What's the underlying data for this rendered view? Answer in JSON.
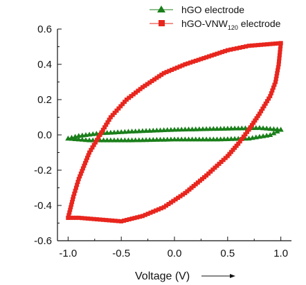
{
  "chart_data": {
    "type": "scatter",
    "title": "",
    "xlabel": "Voltage (V)",
    "ylabel": "",
    "xlim": [
      -1.1,
      1.1
    ],
    "ylim": [
      -0.6,
      0.6
    ],
    "xticks": [
      -1.0,
      -0.5,
      0.0,
      0.5,
      1.0
    ],
    "xtick_labels": [
      "-1.0",
      "-0.5",
      "0.0",
      "0.5",
      "1.0"
    ],
    "yticks": [
      -0.6,
      -0.4,
      -0.2,
      0.0,
      0.2,
      0.4,
      0.6
    ],
    "ytick_labels": [
      "-0.6",
      "-0.4",
      "-0.2",
      "0.0",
      "0.2",
      "0.4",
      "0.6"
    ],
    "grid": false,
    "legend_position": "top-right",
    "series": [
      {
        "name": "hGO electrode",
        "name_main": "hGO electrode",
        "name_sub": "",
        "name_tail": "",
        "marker": "triangle",
        "color": "#1a7f1a",
        "forward": [
          [
            -1.0,
            -0.02
          ],
          [
            -0.9,
            -0.005
          ],
          [
            -0.7,
            0.01
          ],
          [
            -0.4,
            0.02
          ],
          [
            0.0,
            0.03
          ],
          [
            0.4,
            0.035
          ],
          [
            0.8,
            0.04
          ],
          [
            1.0,
            0.03
          ]
        ],
        "reverse": [
          [
            1.0,
            0.03
          ],
          [
            0.9,
            0.0
          ],
          [
            0.7,
            -0.02
          ],
          [
            0.4,
            -0.025
          ],
          [
            0.0,
            -0.025
          ],
          [
            -0.4,
            -0.03
          ],
          [
            -0.8,
            -0.03
          ],
          [
            -1.0,
            -0.02
          ]
        ]
      },
      {
        "name": "hGO-VNW120 electrode",
        "name_main": "hGO-VNW",
        "name_sub": "120",
        "name_tail": " electrode",
        "marker": "square",
        "color": "#e8261e",
        "forward": [
          [
            -1.0,
            -0.47
          ],
          [
            -0.95,
            -0.35
          ],
          [
            -0.9,
            -0.25
          ],
          [
            -0.8,
            -0.1
          ],
          [
            -0.7,
            0.0
          ],
          [
            -0.6,
            0.1
          ],
          [
            -0.45,
            0.2
          ],
          [
            -0.3,
            0.27
          ],
          [
            -0.1,
            0.35
          ],
          [
            0.1,
            0.4
          ],
          [
            0.3,
            0.44
          ],
          [
            0.5,
            0.48
          ],
          [
            0.7,
            0.505
          ],
          [
            0.9,
            0.515
          ],
          [
            1.0,
            0.52
          ]
        ],
        "reverse": [
          [
            1.0,
            0.52
          ],
          [
            0.98,
            0.4
          ],
          [
            0.95,
            0.3
          ],
          [
            0.9,
            0.22
          ],
          [
            0.8,
            0.12
          ],
          [
            0.7,
            0.03
          ],
          [
            0.6,
            -0.05
          ],
          [
            0.5,
            -0.12
          ],
          [
            0.3,
            -0.23
          ],
          [
            0.1,
            -0.33
          ],
          [
            -0.1,
            -0.41
          ],
          [
            -0.3,
            -0.46
          ],
          [
            -0.5,
            -0.49
          ],
          [
            -0.7,
            -0.48
          ],
          [
            -0.9,
            -0.47
          ],
          [
            -1.0,
            -0.47
          ]
        ]
      }
    ]
  }
}
